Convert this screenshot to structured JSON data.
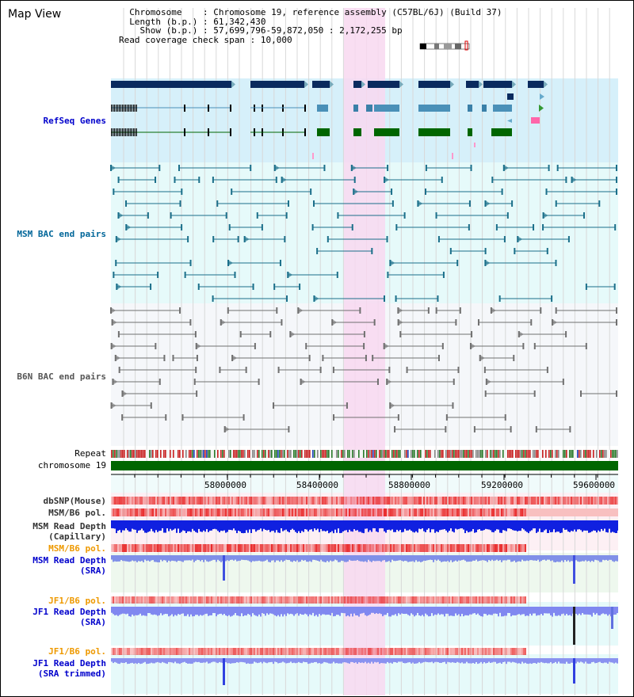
{
  "title": "Map View",
  "info": {
    "chromosome_label": "Chromosome",
    "chromosome_value": "Chromosome 19, reference assembly (C57BL/6J) (Build 37)",
    "length_label": "Length (b.p.)",
    "length_value": "61,342,430",
    "show_label": "Show (b.p.)",
    "show_value": "57,699,796-59,872,050 : 2,172,255 bp",
    "span_label": "Read coverage check span",
    "span_value": "10,000"
  },
  "tracks": {
    "refseq": "RefSeq Genes",
    "msm_bac": "MSM BAC end pairs",
    "b6n_bac": "B6N BAC end pairs",
    "repeat": "Repeat",
    "chromosome": "chromosome 19",
    "dbsnp": "dbSNP(Mouse)",
    "msm_b6_pol_1": "MSM/B6 pol.",
    "msm_read_depth_cap_1": "MSM Read Depth",
    "msm_read_depth_cap_2": "(Capillary)",
    "msm_b6_pol_2": "MSM/B6 pol.",
    "msm_read_depth_sra_1": "MSM Read Depth",
    "msm_read_depth_sra_2": "(SRA)",
    "jf1_b6_pol_1": "JF1/B6 pol.",
    "jf1_read_depth_sra_1": "JF1 Read Depth",
    "jf1_read_depth_sra_2": "(SRA)",
    "jf1_b6_pol_2": "JF1/B6 pol.",
    "jf1_read_depth_trim_1": "JF1 Read Depth",
    "jf1_read_depth_trim_2": "(SRA trimmed)"
  },
  "axis": {
    "ticks": [
      "58000000",
      "58400000",
      "58800000",
      "59200000",
      "59600000"
    ]
  },
  "colors": {
    "refseq_bg": "#d6f0fa",
    "msm_bg": "#e6fafa",
    "b6n_bg": "#f5f7fa",
    "highlight": "#f8d8f0",
    "label_blue": "#0000cc",
    "label_teal": "#006699",
    "label_gray": "#555555",
    "label_orange": "#ee9900",
    "gene_navy": "#0a2a5e",
    "gene_steel": "#4a90b8",
    "gene_green": "#006600",
    "chrom_green": "#006600"
  }
}
